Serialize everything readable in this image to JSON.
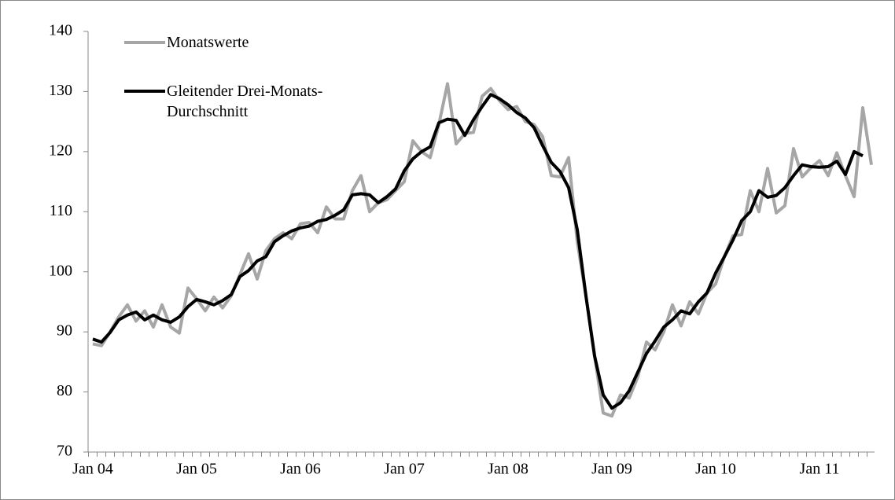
{
  "chart_data": {
    "type": "line",
    "categories": [
      "Jan 04",
      null,
      null,
      null,
      null,
      null,
      null,
      null,
      null,
      null,
      null,
      null,
      "Jan 05",
      null,
      null,
      null,
      null,
      null,
      null,
      null,
      null,
      null,
      null,
      null,
      "Jan 06",
      null,
      null,
      null,
      null,
      null,
      null,
      null,
      null,
      null,
      null,
      null,
      "Jan 07",
      null,
      null,
      null,
      null,
      null,
      null,
      null,
      null,
      null,
      null,
      null,
      "Jan 08",
      null,
      null,
      null,
      null,
      null,
      null,
      null,
      null,
      null,
      null,
      null,
      "Jan 09",
      null,
      null,
      null,
      null,
      null,
      null,
      null,
      null,
      null,
      null,
      null,
      "Jan 10",
      null,
      null,
      null,
      null,
      null,
      null,
      null,
      null,
      null,
      null,
      null,
      "Jan 11",
      null,
      null,
      null,
      null,
      null,
      null
    ],
    "series": [
      {
        "name": "Monatswerte",
        "color": "#a6a6a6",
        "values": [
          88,
          87.7,
          90,
          92.5,
          94.5,
          91.8,
          93.5,
          90.8,
          94.5,
          90.8,
          89.8,
          97.3,
          95.5,
          93.5,
          95.8,
          94,
          96,
          99.5,
          103,
          98.8,
          103.5,
          105.5,
          106.5,
          105.5,
          108,
          108.2,
          106.5,
          110.8,
          108.8,
          108.8,
          113.5,
          116,
          110,
          111.5,
          112,
          113.5,
          115,
          121.8,
          120,
          119,
          124.5,
          131.3,
          121.3,
          123,
          123.2,
          129.2,
          130.5,
          128.5,
          127,
          127.5,
          125,
          124.5,
          122.5,
          116,
          115.8,
          119,
          105,
          96,
          86,
          76.5,
          76,
          79.5,
          79,
          82.5,
          88.3,
          87,
          90,
          94.5,
          91,
          95,
          93,
          96.5,
          98,
          102.5,
          106,
          106.2,
          113.5,
          110,
          117.2,
          109.8,
          111,
          120.5,
          115.8,
          117.3,
          118.5,
          116,
          119.8,
          116,
          112.5,
          127.3,
          117.8
        ]
      },
      {
        "name": "Gleitender Drei-Monats-Durchschnitt",
        "color": "#000000",
        "values": [
          88.8,
          88.3,
          89.9,
          92,
          92.8,
          93.3,
          92,
          92.8,
          92,
          91.6,
          92.5,
          94.2,
          95.4,
          95,
          94.5,
          95.2,
          96.2,
          99.2,
          100.2,
          101.8,
          102.5,
          105,
          106,
          106.8,
          107.3,
          107.6,
          108.4,
          108.7,
          109.4,
          110.3,
          112.8,
          113,
          112.8,
          111.5,
          112.5,
          113.8,
          116.8,
          118.8,
          120,
          120.8,
          124.8,
          125.4,
          125.2,
          122.7,
          125.3,
          127.5,
          129.5,
          128.8,
          127.8,
          126.5,
          125.6,
          124,
          121,
          118.2,
          116.7,
          114,
          107,
          96,
          86,
          79.5,
          77.3,
          78.2,
          80.2,
          83.3,
          86.4,
          88.5,
          90.8,
          92,
          93.5,
          93,
          95,
          96.5,
          99.8,
          102.5,
          105.3,
          108.5,
          110,
          113.5,
          112.4,
          112.7,
          114,
          116,
          117.8,
          117.5,
          117.4,
          117.5,
          118.4,
          116.2,
          120,
          119.3,
          null
        ]
      }
    ],
    "ylim": [
      70,
      140
    ],
    "yticks": [
      70,
      80,
      90,
      100,
      110,
      120,
      130,
      140
    ],
    "grid": false,
    "legend": "top-left"
  }
}
